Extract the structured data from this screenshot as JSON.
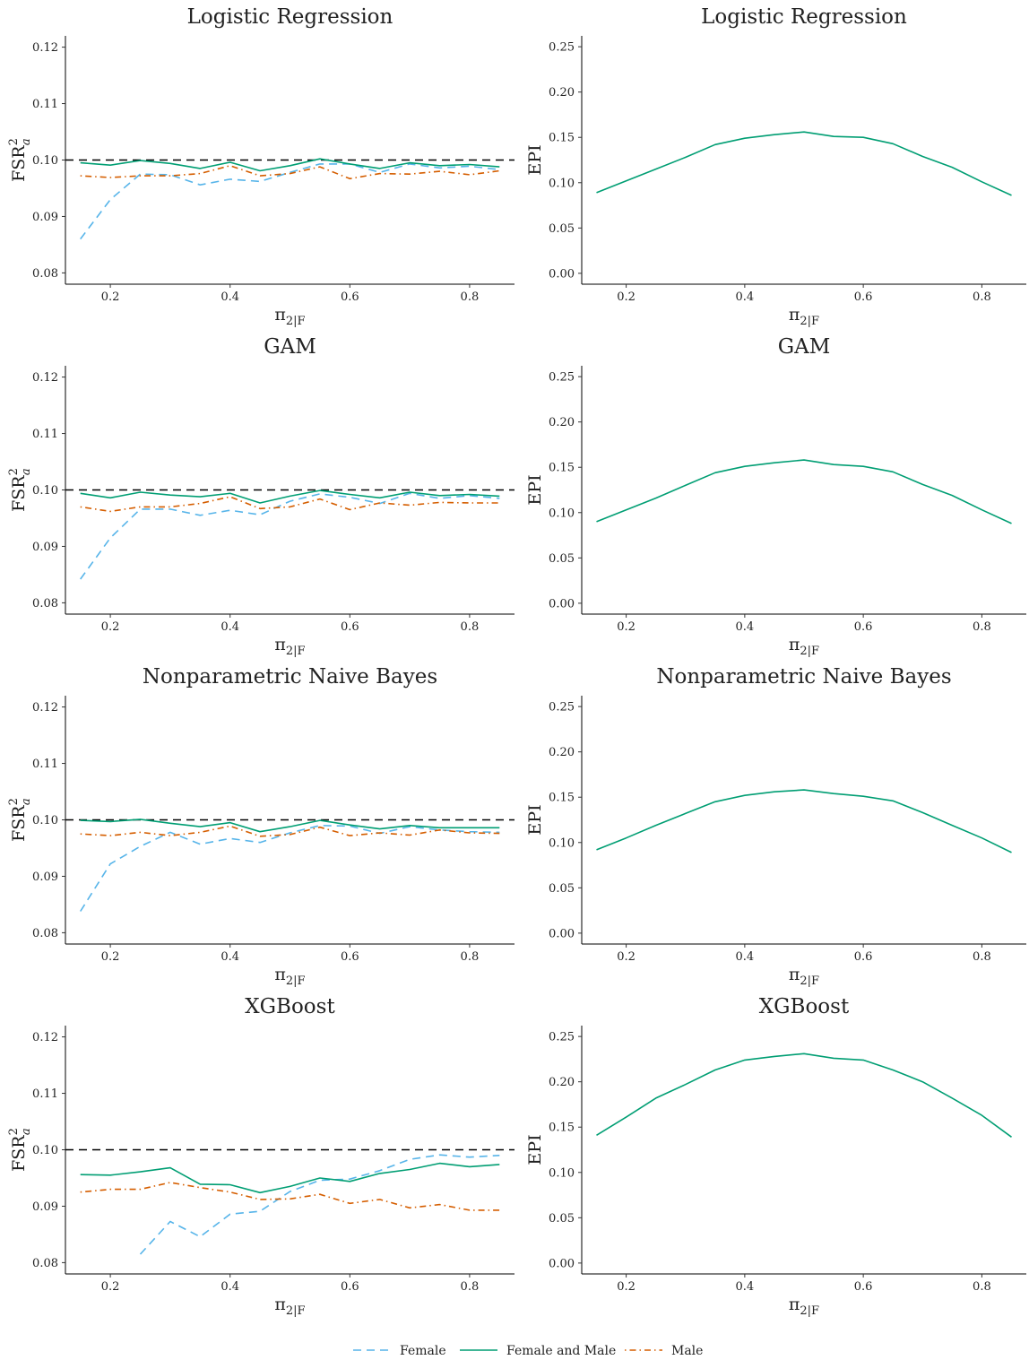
{
  "colors": {
    "Female": "#56B4E9",
    "Female and Male": "#009E73",
    "Male": "#D55E00",
    "reference": "#000000",
    "axis": "#000000"
  },
  "legend": {
    "position": "bottom",
    "items": [
      {
        "name": "Female",
        "style": "dashed"
      },
      {
        "name": "Female and Male",
        "style": "solid"
      },
      {
        "name": "Male",
        "style": "dotdash"
      }
    ]
  },
  "chart_data": [
    {
      "type": "line",
      "title": "Logistic Regression",
      "ylabel": "FSR",
      "ylabel_sup": "2",
      "ylabel_sub": "a",
      "xlabel": "π",
      "xlabel_sub": "2|F",
      "xlim": [
        0.125,
        0.875
      ],
      "ylim": [
        0.078,
        0.122
      ],
      "xticks": [
        0.2,
        0.4,
        0.6,
        0.8
      ],
      "xtick_labels": [
        "0.2",
        "0.4",
        "0.6",
        "0.8"
      ],
      "yticks": [
        0.08,
        0.09,
        0.1,
        0.11,
        0.12
      ],
      "ytick_labels": [
        "0.08",
        "0.09",
        "0.10",
        "0.11",
        "0.12"
      ],
      "reference_line": 0.1,
      "grid": false,
      "series": [
        {
          "name": "Female",
          "style": "dashed",
          "x": [
            0.15,
            0.2,
            0.25,
            0.3,
            0.35,
            0.4,
            0.45,
            0.5,
            0.55,
            0.6,
            0.65,
            0.7,
            0.75,
            0.8,
            0.85
          ],
          "y": [
            0.086,
            0.093,
            0.0975,
            0.0974,
            0.0956,
            0.0966,
            0.0962,
            0.0978,
            0.0993,
            0.0993,
            0.0978,
            0.0993,
            0.0986,
            0.0989,
            0.0983
          ]
        },
        {
          "name": "Female and Male",
          "style": "solid",
          "x": [
            0.15,
            0.2,
            0.25,
            0.3,
            0.35,
            0.4,
            0.45,
            0.5,
            0.55,
            0.6,
            0.65,
            0.7,
            0.75,
            0.8,
            0.85
          ],
          "y": [
            0.0995,
            0.0991,
            0.0999,
            0.0994,
            0.0985,
            0.0996,
            0.0981,
            0.099,
            0.1002,
            0.0993,
            0.0985,
            0.0995,
            0.099,
            0.0992,
            0.0988
          ]
        },
        {
          "name": "Male",
          "style": "dotdash",
          "x": [
            0.15,
            0.2,
            0.25,
            0.3,
            0.35,
            0.4,
            0.45,
            0.5,
            0.55,
            0.6,
            0.65,
            0.7,
            0.75,
            0.8,
            0.85
          ],
          "y": [
            0.0972,
            0.0969,
            0.0972,
            0.0972,
            0.0976,
            0.099,
            0.0972,
            0.0976,
            0.0988,
            0.0967,
            0.0976,
            0.0975,
            0.098,
            0.0974,
            0.0981
          ]
        }
      ]
    },
    {
      "type": "line",
      "title": "Logistic Regression",
      "ylabel": "EPI",
      "xlabel": "π",
      "xlabel_sub": "2|F",
      "xlim": [
        0.125,
        0.875
      ],
      "ylim": [
        -0.012,
        0.262
      ],
      "xticks": [
        0.2,
        0.4,
        0.6,
        0.8
      ],
      "xtick_labels": [
        "0.2",
        "0.4",
        "0.6",
        "0.8"
      ],
      "yticks": [
        0.0,
        0.05,
        0.1,
        0.15,
        0.2,
        0.25
      ],
      "ytick_labels": [
        "0.00",
        "0.05",
        "0.10",
        "0.15",
        "0.20",
        "0.25"
      ],
      "grid": false,
      "series": [
        {
          "name": "Female and Male",
          "style": "solid",
          "x": [
            0.15,
            0.2,
            0.25,
            0.3,
            0.35,
            0.4,
            0.45,
            0.5,
            0.55,
            0.6,
            0.65,
            0.7,
            0.75,
            0.8,
            0.85
          ],
          "y": [
            0.089,
            0.102,
            0.115,
            0.128,
            0.142,
            0.149,
            0.153,
            0.156,
            0.151,
            0.15,
            0.143,
            0.129,
            0.117,
            0.101,
            0.086
          ]
        }
      ]
    },
    {
      "type": "line",
      "title": "GAM",
      "ylabel": "FSR",
      "ylabel_sup": "2",
      "ylabel_sub": "a",
      "xlabel": "π",
      "xlabel_sub": "2|F",
      "xlim": [
        0.125,
        0.875
      ],
      "ylim": [
        0.078,
        0.122
      ],
      "xticks": [
        0.2,
        0.4,
        0.6,
        0.8
      ],
      "xtick_labels": [
        "0.2",
        "0.4",
        "0.6",
        "0.8"
      ],
      "yticks": [
        0.08,
        0.09,
        0.1,
        0.11,
        0.12
      ],
      "ytick_labels": [
        "0.08",
        "0.09",
        "0.10",
        "0.11",
        "0.12"
      ],
      "reference_line": 0.1,
      "grid": false,
      "series": [
        {
          "name": "Female",
          "style": "dashed",
          "x": [
            0.15,
            0.2,
            0.25,
            0.3,
            0.35,
            0.4,
            0.45,
            0.5,
            0.55,
            0.6,
            0.65,
            0.7,
            0.75,
            0.8,
            0.85
          ],
          "y": [
            0.0842,
            0.0915,
            0.0966,
            0.0966,
            0.0955,
            0.0964,
            0.0956,
            0.098,
            0.0993,
            0.0987,
            0.0976,
            0.0994,
            0.0985,
            0.099,
            0.0985
          ]
        },
        {
          "name": "Female and Male",
          "style": "solid",
          "x": [
            0.15,
            0.2,
            0.25,
            0.3,
            0.35,
            0.4,
            0.45,
            0.5,
            0.55,
            0.6,
            0.65,
            0.7,
            0.75,
            0.8,
            0.85
          ],
          "y": [
            0.0994,
            0.0986,
            0.0996,
            0.0991,
            0.0988,
            0.0994,
            0.0977,
            0.0989,
            0.0999,
            0.0992,
            0.0986,
            0.0996,
            0.099,
            0.0992,
            0.0989
          ]
        },
        {
          "name": "Male",
          "style": "dotdash",
          "x": [
            0.15,
            0.2,
            0.25,
            0.3,
            0.35,
            0.4,
            0.45,
            0.5,
            0.55,
            0.6,
            0.65,
            0.7,
            0.75,
            0.8,
            0.85
          ],
          "y": [
            0.097,
            0.0962,
            0.097,
            0.097,
            0.0976,
            0.0988,
            0.0967,
            0.097,
            0.0984,
            0.0965,
            0.0977,
            0.0973,
            0.0978,
            0.0977,
            0.0977
          ]
        }
      ]
    },
    {
      "type": "line",
      "title": "GAM",
      "ylabel": "EPI",
      "xlabel": "π",
      "xlabel_sub": "2|F",
      "xlim": [
        0.125,
        0.875
      ],
      "ylim": [
        -0.012,
        0.262
      ],
      "xticks": [
        0.2,
        0.4,
        0.6,
        0.8
      ],
      "xtick_labels": [
        "0.2",
        "0.4",
        "0.6",
        "0.8"
      ],
      "yticks": [
        0.0,
        0.05,
        0.1,
        0.15,
        0.2,
        0.25
      ],
      "ytick_labels": [
        "0.00",
        "0.05",
        "0.10",
        "0.15",
        "0.20",
        "0.25"
      ],
      "grid": false,
      "series": [
        {
          "name": "Female and Male",
          "style": "solid",
          "x": [
            0.15,
            0.2,
            0.25,
            0.3,
            0.35,
            0.4,
            0.45,
            0.5,
            0.55,
            0.6,
            0.65,
            0.7,
            0.75,
            0.8,
            0.85
          ],
          "y": [
            0.09,
            0.103,
            0.116,
            0.13,
            0.144,
            0.151,
            0.155,
            0.158,
            0.153,
            0.151,
            0.145,
            0.131,
            0.119,
            0.103,
            0.088
          ]
        }
      ]
    },
    {
      "type": "line",
      "title": "Nonparametric Naive Bayes",
      "ylabel": "FSR",
      "ylabel_sup": "2",
      "ylabel_sub": "a",
      "xlabel": "π",
      "xlabel_sub": "2|F",
      "xlim": [
        0.125,
        0.875
      ],
      "ylim": [
        0.078,
        0.122
      ],
      "xticks": [
        0.2,
        0.4,
        0.6,
        0.8
      ],
      "xtick_labels": [
        "0.2",
        "0.4",
        "0.6",
        "0.8"
      ],
      "yticks": [
        0.08,
        0.09,
        0.1,
        0.11,
        0.12
      ],
      "ytick_labels": [
        "0.08",
        "0.09",
        "0.10",
        "0.11",
        "0.12"
      ],
      "reference_line": 0.1,
      "grid": false,
      "series": [
        {
          "name": "Female",
          "style": "dashed",
          "x": [
            0.15,
            0.2,
            0.25,
            0.3,
            0.35,
            0.4,
            0.45,
            0.5,
            0.55,
            0.6,
            0.65,
            0.7,
            0.75,
            0.8,
            0.85
          ],
          "y": [
            0.0838,
            0.0922,
            0.0953,
            0.0978,
            0.0957,
            0.0967,
            0.096,
            0.0977,
            0.099,
            0.0989,
            0.0976,
            0.0988,
            0.0982,
            0.0979,
            0.0978
          ]
        },
        {
          "name": "Female and Male",
          "style": "solid",
          "x": [
            0.15,
            0.2,
            0.25,
            0.3,
            0.35,
            0.4,
            0.45,
            0.5,
            0.55,
            0.6,
            0.65,
            0.7,
            0.75,
            0.8,
            0.85
          ],
          "y": [
            0.0999,
            0.0997,
            0.1001,
            0.0994,
            0.0988,
            0.0995,
            0.0979,
            0.0988,
            0.0999,
            0.0991,
            0.0984,
            0.099,
            0.0986,
            0.0986,
            0.0986
          ]
        },
        {
          "name": "Male",
          "style": "dotdash",
          "x": [
            0.15,
            0.2,
            0.25,
            0.3,
            0.35,
            0.4,
            0.45,
            0.5,
            0.55,
            0.6,
            0.65,
            0.7,
            0.75,
            0.8,
            0.85
          ],
          "y": [
            0.0975,
            0.0972,
            0.0978,
            0.0972,
            0.0978,
            0.0989,
            0.0971,
            0.0974,
            0.0987,
            0.0972,
            0.0977,
            0.0973,
            0.0982,
            0.0977,
            0.0976
          ]
        }
      ]
    },
    {
      "type": "line",
      "title": "Nonparametric Naive Bayes",
      "ylabel": "EPI",
      "xlabel": "π",
      "xlabel_sub": "2|F",
      "xlim": [
        0.125,
        0.875
      ],
      "ylim": [
        -0.012,
        0.262
      ],
      "xticks": [
        0.2,
        0.4,
        0.6,
        0.8
      ],
      "xtick_labels": [
        "0.2",
        "0.4",
        "0.6",
        "0.8"
      ],
      "yticks": [
        0.0,
        0.05,
        0.1,
        0.15,
        0.2,
        0.25
      ],
      "ytick_labels": [
        "0.00",
        "0.05",
        "0.10",
        "0.15",
        "0.20",
        "0.25"
      ],
      "grid": false,
      "series": [
        {
          "name": "Female and Male",
          "style": "solid",
          "x": [
            0.15,
            0.2,
            0.25,
            0.3,
            0.35,
            0.4,
            0.45,
            0.5,
            0.55,
            0.6,
            0.65,
            0.7,
            0.75,
            0.8,
            0.85
          ],
          "y": [
            0.092,
            0.105,
            0.119,
            0.132,
            0.145,
            0.152,
            0.156,
            0.158,
            0.154,
            0.151,
            0.146,
            0.133,
            0.119,
            0.105,
            0.089
          ]
        }
      ]
    },
    {
      "type": "line",
      "title": "XGBoost",
      "ylabel": "FSR",
      "ylabel_sup": "2",
      "ylabel_sub": "a",
      "xlabel": "π",
      "xlabel_sub": "2|F",
      "xlim": [
        0.125,
        0.875
      ],
      "ylim": [
        0.078,
        0.122
      ],
      "xticks": [
        0.2,
        0.4,
        0.6,
        0.8
      ],
      "xtick_labels": [
        "0.2",
        "0.4",
        "0.6",
        "0.8"
      ],
      "yticks": [
        0.08,
        0.09,
        0.1,
        0.11,
        0.12
      ],
      "ytick_labels": [
        "0.08",
        "0.09",
        "0.10",
        "0.11",
        "0.12"
      ],
      "reference_line": 0.1,
      "grid": false,
      "series": [
        {
          "name": "Female",
          "style": "dashed",
          "x": [
            0.25,
            0.3,
            0.35,
            0.4,
            0.45,
            0.5,
            0.55,
            0.6,
            0.65,
            0.7,
            0.75,
            0.8,
            0.85
          ],
          "y": [
            0.0815,
            0.0873,
            0.0846,
            0.0886,
            0.0891,
            0.0926,
            0.0946,
            0.0948,
            0.0963,
            0.0983,
            0.0991,
            0.0987,
            0.099
          ]
        },
        {
          "name": "Female and Male",
          "style": "solid",
          "x": [
            0.15,
            0.2,
            0.25,
            0.3,
            0.35,
            0.4,
            0.45,
            0.5,
            0.55,
            0.6,
            0.65,
            0.7,
            0.75,
            0.8,
            0.85
          ],
          "y": [
            0.0956,
            0.0955,
            0.0961,
            0.0968,
            0.0939,
            0.0938,
            0.0924,
            0.0935,
            0.095,
            0.0944,
            0.0958,
            0.0965,
            0.0976,
            0.097,
            0.0974
          ]
        },
        {
          "name": "Male",
          "style": "dotdash",
          "x": [
            0.15,
            0.2,
            0.25,
            0.3,
            0.35,
            0.4,
            0.45,
            0.5,
            0.55,
            0.6,
            0.65,
            0.7,
            0.75,
            0.8,
            0.85
          ],
          "y": [
            0.0925,
            0.093,
            0.093,
            0.0942,
            0.0933,
            0.0925,
            0.0912,
            0.0913,
            0.0921,
            0.0905,
            0.0912,
            0.0897,
            0.0903,
            0.0893,
            0.0893
          ]
        }
      ]
    },
    {
      "type": "line",
      "title": "XGBoost",
      "ylabel": "EPI",
      "xlabel": "π",
      "xlabel_sub": "2|F",
      "xlim": [
        0.125,
        0.875
      ],
      "ylim": [
        -0.012,
        0.262
      ],
      "xticks": [
        0.2,
        0.4,
        0.6,
        0.8
      ],
      "xtick_labels": [
        "0.2",
        "0.4",
        "0.6",
        "0.8"
      ],
      "yticks": [
        0.0,
        0.05,
        0.1,
        0.15,
        0.2,
        0.25
      ],
      "ytick_labels": [
        "0.00",
        "0.05",
        "0.10",
        "0.15",
        "0.20",
        "0.25"
      ],
      "grid": false,
      "series": [
        {
          "name": "Female and Male",
          "style": "solid",
          "x": [
            0.15,
            0.2,
            0.25,
            0.3,
            0.35,
            0.4,
            0.45,
            0.5,
            0.55,
            0.6,
            0.65,
            0.7,
            0.75,
            0.8,
            0.85
          ],
          "y": [
            0.141,
            0.161,
            0.182,
            0.197,
            0.213,
            0.224,
            0.228,
            0.231,
            0.226,
            0.224,
            0.213,
            0.2,
            0.182,
            0.163,
            0.139
          ]
        }
      ]
    }
  ]
}
